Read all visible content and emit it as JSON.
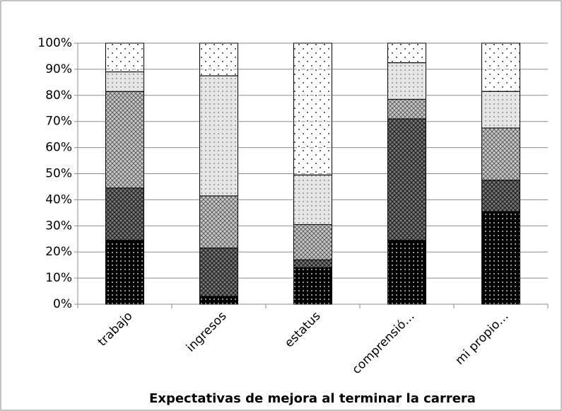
{
  "chart_data": {
    "type": "stacked_bar",
    "x_label": "Expectativas de mejora al terminar la carrera",
    "categories": [
      "trabajo",
      "ingresos",
      "estatus",
      "comprensió…",
      "mi propio…"
    ],
    "series": [
      {
        "color": "#000000",
        "values": [
          24.5,
          3,
          14,
          24.5,
          35.5
        ]
      },
      {
        "color": "#7a7a7a",
        "values": [
          20,
          18.5,
          3,
          46.5,
          12
        ]
      },
      {
        "color": "#c8c8c8",
        "values": [
          37,
          20,
          13.5,
          7.5,
          20
        ]
      },
      {
        "color": "#e6e6e6",
        "values": [
          7.5,
          46,
          19,
          14,
          14
        ]
      },
      {
        "color": "#ffffff",
        "values": [
          11,
          12.5,
          50.5,
          7.5,
          18.5
        ]
      }
    ],
    "ylim": [
      0,
      100
    ],
    "yticks": [
      {
        "value": 0,
        "label": "0%"
      },
      {
        "value": 10,
        "label": "10%"
      },
      {
        "value": 20,
        "label": "20%"
      },
      {
        "value": 30,
        "label": "30%"
      },
      {
        "value": 40,
        "label": "40%"
      },
      {
        "value": 50,
        "label": "50%"
      },
      {
        "value": 60,
        "label": "60%"
      },
      {
        "value": 70,
        "label": "70%"
      },
      {
        "value": 80,
        "label": "80%"
      },
      {
        "value": 90,
        "label": "90%"
      },
      {
        "value": 100,
        "label": "100%"
      }
    ],
    "grid": true
  }
}
